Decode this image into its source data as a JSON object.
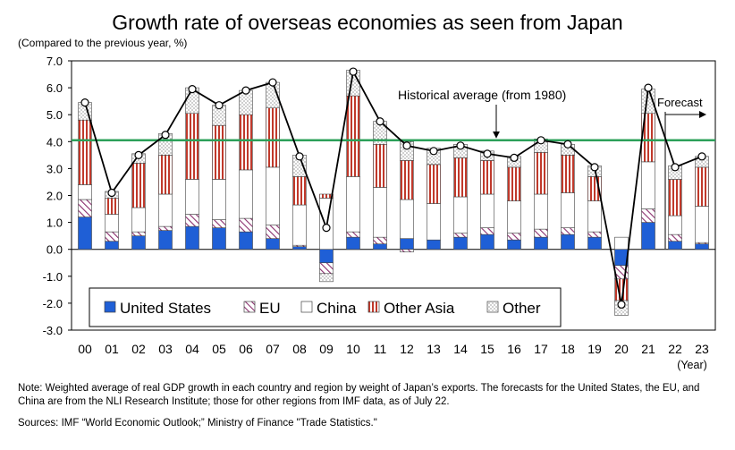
{
  "title": "Growth rate of overseas economies as seen from Japan",
  "unit_label": "(Compared to the previous year, %)",
  "note": "Note: Weighted average of real GDP growth in each country and region by weight of Japan’s exports. The forecasts for the United States, the EU, and China are from the NLI Research Institute; those for other regions from IMF data, as of July 22.",
  "sources": "Sources: IMF “World Economic Outlook;” Ministry of Finance \"Trade Statistics.\"",
  "chart_data": {
    "type": "bar",
    "stacked": true,
    "categories": [
      "00",
      "01",
      "02",
      "03",
      "04",
      "05",
      "06",
      "07",
      "08",
      "09",
      "10",
      "11",
      "12",
      "13",
      "14",
      "15",
      "16",
      "17",
      "18",
      "19",
      "20",
      "21",
      "22",
      "23"
    ],
    "x_unit": "(Year)",
    "ylim": [
      -3.0,
      7.0
    ],
    "y_ticks": [
      "7.0",
      "6.0",
      "5.0",
      "4.0",
      "3.0",
      "2.0",
      "1.0",
      "0.0",
      "-1.0",
      "-2.0",
      "-3.0"
    ],
    "series": [
      {
        "name": "United States",
        "color": "#1f5fd6",
        "values": [
          1.2,
          0.3,
          0.5,
          0.7,
          0.85,
          0.8,
          0.65,
          0.4,
          0.1,
          -0.5,
          0.45,
          0.2,
          0.4,
          0.35,
          0.45,
          0.55,
          0.35,
          0.45,
          0.55,
          0.45,
          -0.6,
          1.0,
          0.3,
          0.2
        ]
      },
      {
        "name": "EU",
        "color": "#8b2f6e",
        "values": [
          0.65,
          0.35,
          0.15,
          0.15,
          0.45,
          0.3,
          0.5,
          0.5,
          0.05,
          -0.4,
          0.2,
          0.25,
          -0.1,
          0.0,
          0.15,
          0.25,
          0.25,
          0.3,
          0.25,
          0.2,
          -0.5,
          0.5,
          0.25,
          0.05
        ]
      },
      {
        "name": "China",
        "color": "#ffffff",
        "values": [
          0.55,
          0.65,
          0.9,
          1.2,
          1.3,
          1.5,
          1.8,
          2.15,
          1.5,
          1.9,
          2.05,
          1.85,
          1.45,
          1.35,
          1.35,
          1.25,
          1.2,
          1.3,
          1.3,
          1.15,
          0.45,
          1.75,
          0.7,
          1.35
        ]
      },
      {
        "name": "Other Asia",
        "color": "#c0392b",
        "values": [
          2.4,
          0.6,
          1.65,
          1.45,
          2.45,
          2.0,
          2.05,
          2.2,
          1.05,
          0.15,
          3.0,
          1.6,
          1.45,
          1.45,
          1.45,
          1.25,
          1.25,
          1.55,
          1.4,
          0.9,
          -0.8,
          1.8,
          1.35,
          1.45
        ]
      },
      {
        "name": "Other",
        "color": "#ffffff",
        "values": [
          0.65,
          0.25,
          0.35,
          0.8,
          0.95,
          0.75,
          0.9,
          0.95,
          0.8,
          -0.3,
          0.95,
          0.85,
          0.7,
          0.6,
          0.5,
          0.35,
          0.4,
          0.5,
          0.4,
          0.4,
          -0.55,
          0.9,
          0.5,
          0.4
        ]
      }
    ],
    "total_line": {
      "values": [
        5.45,
        2.1,
        3.5,
        4.25,
        5.95,
        5.35,
        5.9,
        6.2,
        3.45,
        0.8,
        6.6,
        4.75,
        3.85,
        3.65,
        3.85,
        3.55,
        3.4,
        4.05,
        3.9,
        3.05,
        -2.05,
        6.0,
        3.05,
        3.45
      ]
    },
    "reference_line": {
      "value": 4.05,
      "label": "Historical average (from 1980)",
      "color": "#2ca05a"
    },
    "forecast_label": "Forecast",
    "forecast_start_category": "22",
    "legend_position": "bottom-left"
  }
}
